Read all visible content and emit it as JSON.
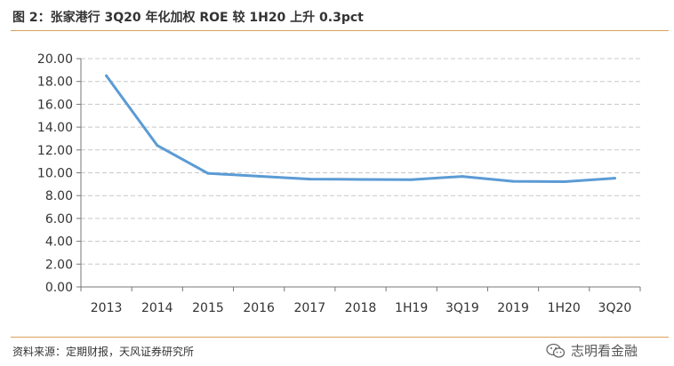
{
  "header": {
    "title": "图 2：张家港行 3Q20 年化加权 ROE 较 1H20 上升 0.3pct"
  },
  "footer": {
    "source": "资料来源：定期财报，天风证券研究所"
  },
  "watermark": {
    "text": "志明看金融",
    "icon": "wechat-icon"
  },
  "colors": {
    "line": "#5b9bd5",
    "grid": "#c8c8c8",
    "rule": "#d9a15a"
  },
  "chart_data": {
    "type": "line",
    "categories": [
      "2013",
      "2014",
      "2015",
      "2016",
      "2017",
      "2018",
      "1H19",
      "3Q19",
      "2019",
      "1H20",
      "3Q20"
    ],
    "series": [
      {
        "values": [
          18.5,
          12.4,
          9.95,
          9.7,
          9.45,
          9.42,
          9.4,
          9.68,
          9.25,
          9.22,
          9.52
        ]
      }
    ],
    "yticks": [
      "0.00",
      "2.00",
      "4.00",
      "6.00",
      "8.00",
      "10.00",
      "12.00",
      "14.00",
      "16.00",
      "18.00",
      "20.00"
    ],
    "ylim": [
      0,
      20
    ],
    "grid": true,
    "legend": "none"
  }
}
